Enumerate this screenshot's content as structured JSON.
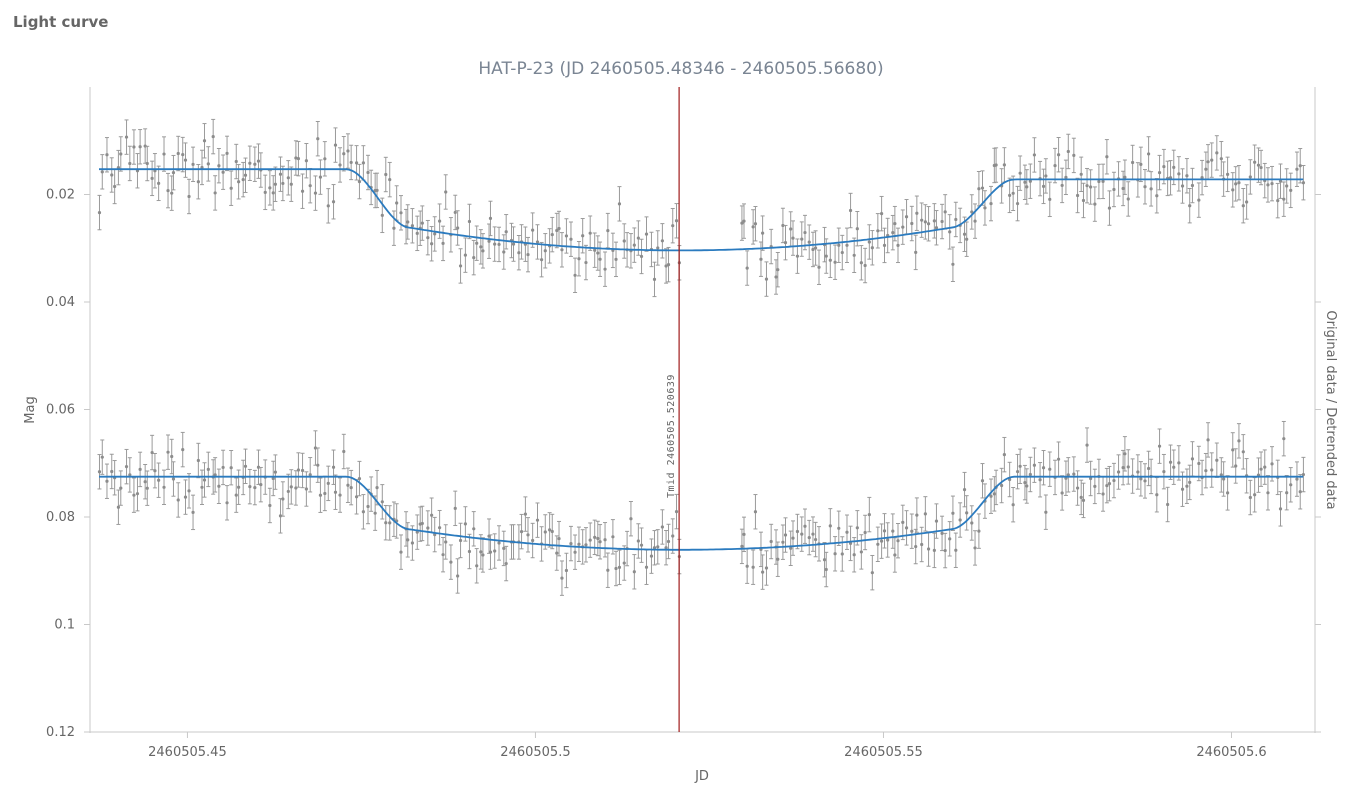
{
  "page": {
    "heading": "Light curve"
  },
  "chart_data": {
    "type": "scatter",
    "title": "HAT-P-23 (JD 2460505.48346 - 2460505.56680)",
    "xlabel": "JD",
    "ylabel": "Mag",
    "y2label": "Original data / Detrended data",
    "xlim": [
      2460505.436,
      2460505.612
    ],
    "ylim": [
      0.12,
      0.0
    ],
    "y_inverted": true,
    "x_ticks": [
      2460505.45,
      2460505.5,
      2460505.55,
      2460505.6
    ],
    "x_tick_labels": [
      "2460505.45",
      "2460505.5",
      "2460505.55",
      "2460505.6"
    ],
    "y_ticks": [
      0.02,
      0.04,
      0.06,
      0.08,
      0.1,
      0.12
    ],
    "y_tick_labels": [
      "0.02",
      "0.04",
      "0.06",
      "0.08",
      "0.1",
      "0.12"
    ],
    "grid": false,
    "tmid": {
      "x": 2460505.520639,
      "label": "Tmid 2460505.520639"
    },
    "gap": [
      2460505.521,
      2460505.529
    ],
    "series": [
      {
        "name": "Original data",
        "offset": 0.0,
        "baseline": 0.0153,
        "post_baseline": 0.0172,
        "depth": 0.0151,
        "error": 0.0032,
        "point_color": "#8c8c8c",
        "model_color": "#2b7bbf"
      },
      {
        "name": "Detrended data",
        "offset": 0.0,
        "baseline": 0.0725,
        "post_baseline": 0.0725,
        "depth": 0.0136,
        "error": 0.0032,
        "point_color": "#8c8c8c",
        "model_color": "#2b7bbf"
      }
    ],
    "transit": {
      "ingress_start": 2460505.4728,
      "ingress_end": 2460505.482,
      "egress_start": 2460505.5596,
      "egress_end": 2460505.5688
    },
    "n_points_per_series": 320,
    "colors": {
      "tmid_line": "#a01c1c",
      "axis": "#c8c8c8"
    }
  }
}
